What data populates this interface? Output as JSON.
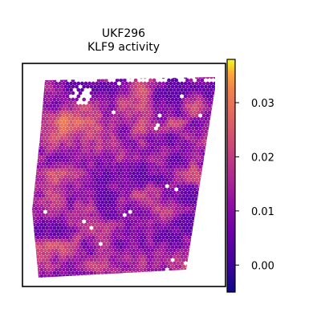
{
  "chart_data": {
    "type": "heatmap",
    "subtype": "spatial-spot-map",
    "title": "UKF296",
    "subtitle": "KLF9 activity",
    "xlabel": "",
    "ylabel": "",
    "grid": false,
    "colormap": "plasma",
    "colorbar": {
      "vmin": -0.005,
      "vmax": 0.038,
      "ticks": [
        0.0,
        0.01,
        0.02,
        0.03
      ],
      "tick_labels": [
        "0.00",
        "0.01",
        "0.02",
        "0.03"
      ],
      "placement": "right"
    },
    "value_summary": {
      "typical_range": [
        0.005,
        0.03
      ],
      "high_hotspot": "upper-left region",
      "low_regions": "bottom-center and top-right areas"
    }
  }
}
